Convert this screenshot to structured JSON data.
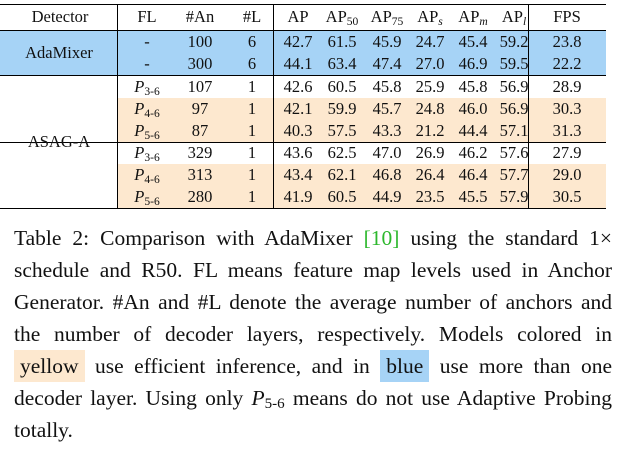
{
  "table": {
    "header": [
      {
        "text": "Detector"
      },
      {
        "text": "FL"
      },
      {
        "text": "#An"
      },
      {
        "text": "#L"
      },
      {
        "text": "AP"
      },
      {
        "text": "AP",
        "sub": "50"
      },
      {
        "text": "AP",
        "sub": "75"
      },
      {
        "text": "AP",
        "sub": "s"
      },
      {
        "text": "AP",
        "sub": "m"
      },
      {
        "text": "AP",
        "sub": "l"
      },
      {
        "text": "FPS"
      }
    ],
    "groups": [
      {
        "detector": "AdaMixer",
        "color": "#a6d3f6",
        "rows": [
          {
            "cells": [
              "-",
              "100",
              "6",
              "42.7",
              "61.5",
              "45.9",
              "24.7",
              "45.4",
              "59.2",
              "23.8"
            ]
          },
          {
            "cells": [
              "-",
              "300",
              "6",
              "44.1",
              "63.4",
              "47.4",
              "27.0",
              "46.9",
              "59.5",
              "22.2"
            ]
          }
        ]
      },
      {
        "detector": "ASAG-A",
        "rows": [
          {
            "cells": [
              {
                "text": "P",
                "sub": "3-6"
              },
              "107",
              "1",
              "42.6",
              "60.5",
              "45.8",
              "25.9",
              "45.8",
              "56.9",
              "28.9"
            ]
          },
          {
            "cells": [
              {
                "text": "P",
                "sub": "4-6"
              },
              "97",
              "1",
              "42.1",
              "59.9",
              "45.7",
              "24.8",
              "46.0",
              "56.9",
              "30.3"
            ],
            "color": "#fde8cf"
          },
          {
            "cells": [
              {
                "text": "P",
                "sub": "5-6"
              },
              "87",
              "1",
              "40.3",
              "57.5",
              "43.3",
              "21.2",
              "44.4",
              "57.1",
              "31.3"
            ],
            "color": "#fde8cf"
          },
          {
            "cells": [
              {
                "text": "P",
                "sub": "3-6"
              },
              "329",
              "1",
              "43.6",
              "62.5",
              "47.0",
              "26.9",
              "46.2",
              "57.6",
              "27.9"
            ]
          },
          {
            "cells": [
              {
                "text": "P",
                "sub": "4-6"
              },
              "313",
              "1",
              "43.4",
              "62.1",
              "46.8",
              "26.4",
              "46.4",
              "57.7",
              "29.0"
            ],
            "color": "#fde8cf"
          },
          {
            "cells": [
              {
                "text": "P",
                "sub": "5-6"
              },
              "280",
              "1",
              "41.9",
              "60.5",
              "44.9",
              "23.5",
              "45.5",
              "57.9",
              "30.5"
            ],
            "color": "#fde8cf"
          }
        ]
      }
    ]
  },
  "caption": [
    "Table 2:  Comparison with AdaMixer ",
    "[10]",
    " using the standard 1× schedule and R50.  FL means feature map levels used in Anchor Generator.  #An and #L denote the average number of anchors and the number of decoder layers, respectively. Models colored in ",
    "yellow",
    " use efficient inference, and in ",
    "blue",
    " use more than one decoder layer.  Using only ",
    {
      "text": "P",
      "sub": "5-6"
    },
    " means do not use Adaptive Probing totally."
  ]
}
